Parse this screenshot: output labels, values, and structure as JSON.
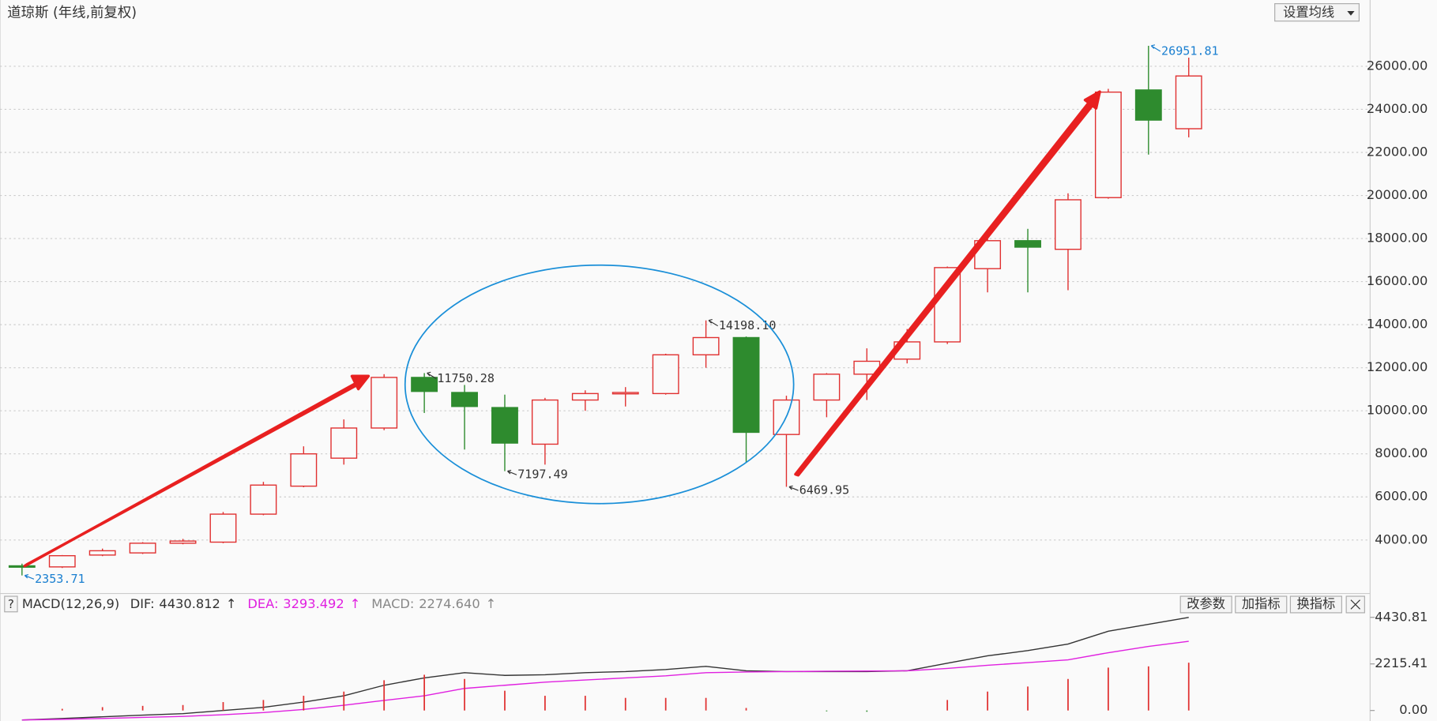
{
  "chart_data": [
    {
      "type": "candlestick",
      "title": "道琼斯 (年线,前复权)",
      "button": "设置均线",
      "up_color": "#e03030",
      "down_color": "#2e8b2e",
      "grid": true,
      "open": [
        2800,
        2750,
        3300,
        3400,
        3850,
        3900,
        5200,
        6500,
        7800,
        9200,
        11550,
        10850,
        10150,
        8450,
        10500,
        10800,
        10800,
        12600,
        13400,
        8900,
        10500,
        11700,
        12400,
        13200,
        16600,
        17900,
        17500,
        19900,
        24900,
        23100
      ],
      "high": [
        2900,
        3300,
        3600,
        3900,
        4050,
        5300,
        6700,
        8350,
        9600,
        11700,
        11750.28,
        11200,
        10750,
        10600,
        10950,
        11100,
        12650,
        14198.1,
        13450,
        10700,
        11750,
        12900,
        13800,
        16700,
        18000,
        18450,
        20100,
        24950,
        26951.81,
        26400
      ],
      "low": [
        2353.71,
        2700,
        3250,
        3350,
        3800,
        3850,
        5150,
        6450,
        7500,
        9100,
        9900,
        8200,
        7197.49,
        7500,
        10000,
        10200,
        10750,
        12000,
        7600,
        6469.95,
        9700,
        10500,
        12200,
        13100,
        15500,
        15500,
        15600,
        19850,
        21900,
        22700
      ],
      "close": [
        2750,
        3270,
        3500,
        3850,
        3950,
        5200,
        6550,
        8000,
        9200,
        11550,
        10900,
        10200,
        8500,
        10500,
        10800,
        10850,
        12600,
        13400,
        9000,
        10500,
        11700,
        12300,
        13200,
        16650,
        17900,
        17600,
        19800,
        24800,
        23500,
        25550
      ],
      "high_labels": [
        null,
        null,
        null,
        null,
        null,
        null,
        null,
        null,
        null,
        null,
        "11750.28",
        null,
        null,
        null,
        null,
        null,
        null,
        "14198.10",
        null,
        null,
        null,
        null,
        null,
        null,
        null,
        null,
        null,
        null,
        "26951.81",
        null
      ],
      "low_labels": [
        "2353.71",
        null,
        null,
        null,
        null,
        null,
        null,
        null,
        null,
        null,
        null,
        null,
        "7197.49",
        null,
        null,
        null,
        null,
        null,
        null,
        "6469.95",
        null,
        null,
        null,
        null,
        null,
        null,
        null,
        null,
        null,
        null
      ],
      "ylim": [
        1600,
        27800
      ],
      "yticks": [
        {
          "value": 4000,
          "label": "4000.00"
        },
        {
          "value": 6000,
          "label": "6000.00"
        },
        {
          "value": 8000,
          "label": "8000.00"
        },
        {
          "value": 10000,
          "label": "10000.00"
        },
        {
          "value": 12000,
          "label": "12000.00"
        },
        {
          "value": 14000,
          "label": "14000.00"
        },
        {
          "value": 16000,
          "label": "16000.00"
        },
        {
          "value": 18000,
          "label": "18000.00"
        },
        {
          "value": 20000,
          "label": "20000.00"
        },
        {
          "value": 22000,
          "label": "22000.00"
        },
        {
          "value": 24000,
          "label": "24000.00"
        },
        {
          "value": 26000,
          "label": "26000.00"
        }
      ]
    },
    {
      "type": "macd",
      "help": "?",
      "title": "MACD(12,26,9)",
      "buttons": [
        "改参数",
        "加指标",
        "换指标"
      ],
      "series": [
        {
          "name": "DIF:",
          "color": "#333333",
          "last_label": "4430.812",
          "trend": "↑",
          "values": [
            -450,
            -380,
            -300,
            -220,
            -150,
            0,
            150,
            400,
            700,
            1200,
            1550,
            1800,
            1670,
            1700,
            1800,
            1850,
            1950,
            2100,
            1890,
            1850,
            1850,
            1850,
            1890,
            2250,
            2600,
            2850,
            3160,
            3770,
            4100,
            4430.812
          ]
        },
        {
          "name": "DEA:",
          "color": "#e020e0",
          "last_label": "3293.492",
          "trend": "↑",
          "values": [
            -450,
            -420,
            -380,
            -330,
            -280,
            -200,
            -100,
            50,
            250,
            480,
            700,
            1050,
            1200,
            1350,
            1450,
            1550,
            1650,
            1800,
            1830,
            1850,
            1870,
            1880,
            1890,
            2000,
            2150,
            2280,
            2410,
            2750,
            3050,
            3293.492
          ]
        },
        {
          "name": "MACD:",
          "color": "#888888",
          "last_label": "2274.640",
          "trend": "↑",
          "bar_color": "#e03030",
          "neg_color": "#2e8b2e",
          "values": [
            0,
            80,
            160,
            220,
            260,
            400,
            500,
            700,
            900,
            1440,
            1700,
            1500,
            940,
            700,
            700,
            600,
            600,
            600,
            120,
            0,
            -40,
            -60,
            0,
            500,
            900,
            1140,
            1500,
            2040,
            2100,
            2274.64
          ]
        }
      ],
      "ylim": [
        -500,
        4650
      ],
      "yticks": [
        {
          "value": 0,
          "label": "0.00"
        },
        2215.41,
        4430.81
      ]
    }
  ]
}
